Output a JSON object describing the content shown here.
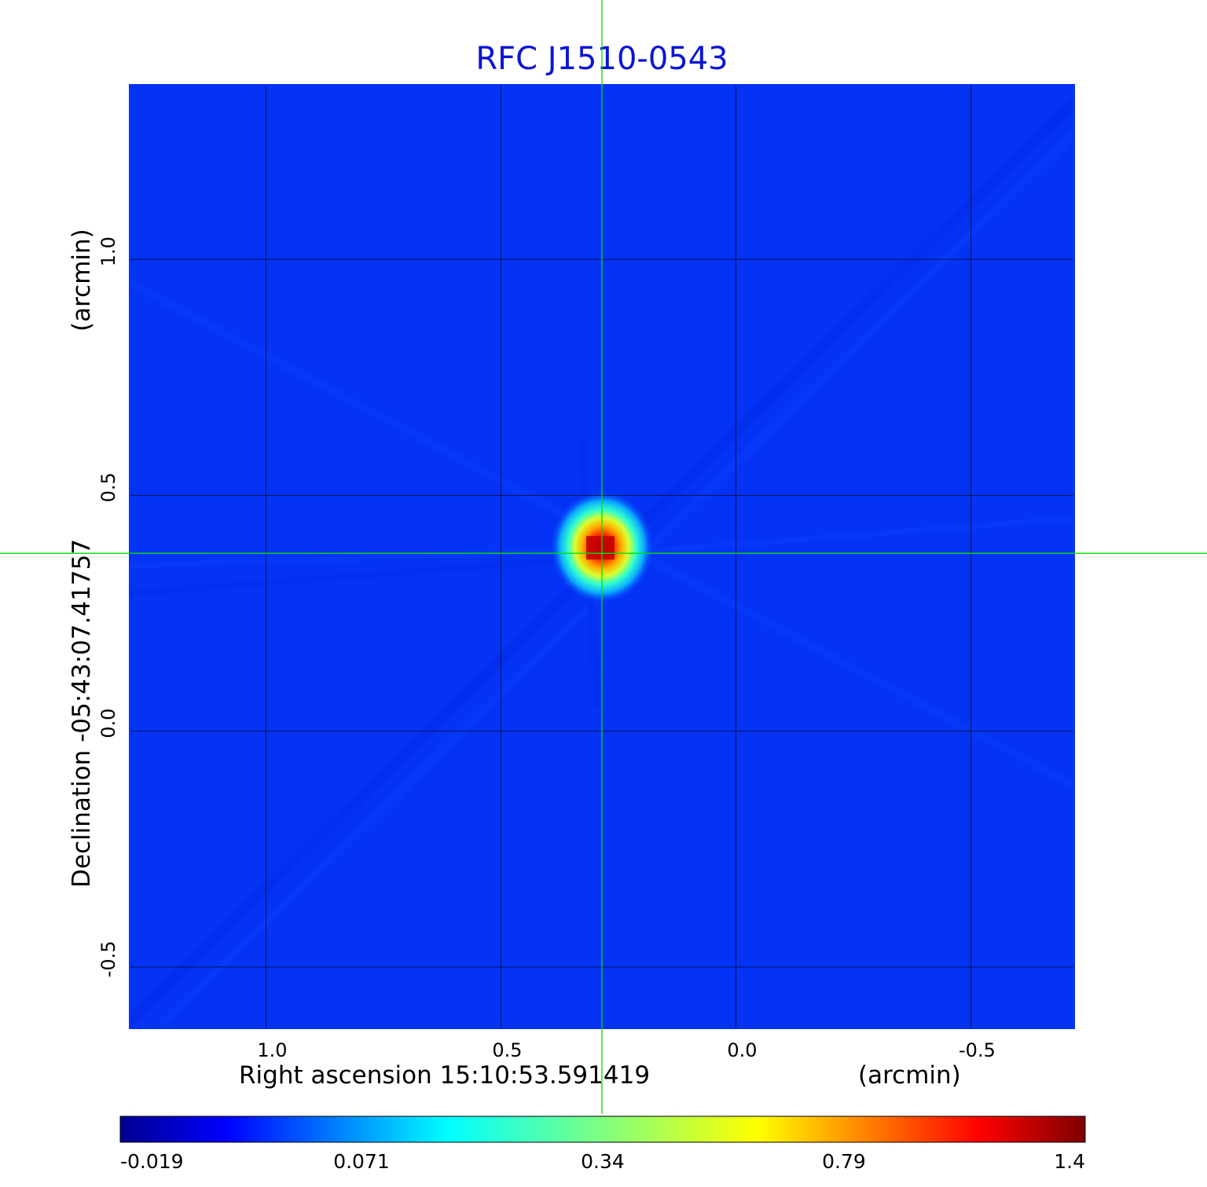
{
  "chart_data": {
    "type": "heatmap",
    "title": "RFC J1510-0543",
    "xlabel": "Right ascension  15:10:53.591419",
    "xlabel_unit": "(arcmin)",
    "ylabel": "Declination  -05:43:07.41757",
    "ylabel_unit": "(arcmin)",
    "xlim": [
      1.29,
      -0.72
    ],
    "ylim": [
      -0.63,
      1.37
    ],
    "x_ticks": [
      {
        "value": 1.0,
        "label": "1.0"
      },
      {
        "value": 0.5,
        "label": "0.5"
      },
      {
        "value": 0.0,
        "label": "0.0"
      },
      {
        "value": -0.5,
        "label": "-0.5"
      }
    ],
    "y_ticks": [
      {
        "value": 1.0,
        "label": "1.0"
      },
      {
        "value": 0.5,
        "label": "0.5"
      },
      {
        "value": 0.0,
        "label": "0.0"
      },
      {
        "value": -0.5,
        "label": "-0.5"
      }
    ],
    "grid": true,
    "crosshair": {
      "x": 0.285,
      "y": 0.377,
      "color": "#00e000"
    },
    "peak": {
      "x": 0.285,
      "y": 0.377,
      "value": 1.4
    },
    "colorbar": {
      "colormap": "jet",
      "ticks": [
        "-0.019",
        "0.071",
        "0.34",
        "0.79",
        "1.4"
      ],
      "min": -0.019,
      "max": 1.4
    },
    "background_color": "#0433f5"
  }
}
